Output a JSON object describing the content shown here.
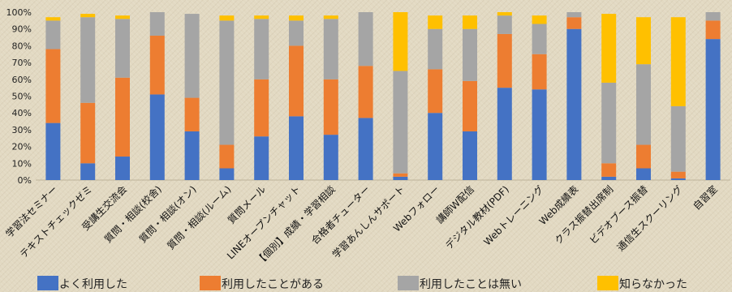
{
  "chart_data": {
    "type": "bar",
    "stacked": true,
    "title": "",
    "xlabel": "",
    "ylabel": "",
    "ylim": [
      0,
      100
    ],
    "y_ticks": [
      "0%",
      "10%",
      "20%",
      "30%",
      "40%",
      "50%",
      "60%",
      "70%",
      "80%",
      "90%",
      "100%"
    ],
    "grid": false,
    "legend_position": "bottom",
    "categories": [
      "学習法セミナー",
      "テキストチェックゼミ",
      "受講生交流会",
      "質問・相談(校舎)",
      "質問・相談(オン)",
      "質問・相談(ルーム)",
      "質問メール",
      "LINEオープンチャット",
      "【個別】成績・学習相談",
      "合格者チューター",
      "学習あんしんサポート",
      "Webフォロー",
      "講師W配信",
      "デジタル教材(PDF)",
      "Webトレーニング",
      "Web成績表",
      "クラス振替出席制",
      "ビデオブース振替",
      "通信生スクーリング",
      "自習室"
    ],
    "series": [
      {
        "name": "よく利用した",
        "color": "#4472c4",
        "values": [
          34,
          10,
          14,
          51,
          29,
          7,
          26,
          38,
          27,
          37,
          2,
          40,
          29,
          55,
          54,
          90,
          2,
          7,
          1,
          84
        ]
      },
      {
        "name": "利用したことがある",
        "color": "#ed7d31",
        "values": [
          44,
          36,
          47,
          35,
          20,
          14,
          34,
          42,
          33,
          31,
          2,
          26,
          30,
          32,
          21,
          7,
          8,
          14,
          4,
          11
        ]
      },
      {
        "name": "利用したことは無い",
        "color": "#a5a5a5",
        "values": [
          17,
          51,
          35,
          14,
          50,
          74,
          36,
          15,
          36,
          32,
          61,
          24,
          31,
          11,
          18,
          3,
          48,
          48,
          39,
          5
        ]
      },
      {
        "name": "知らなかった",
        "color": "#ffc000",
        "values": [
          2,
          2,
          2,
          0,
          0,
          3,
          2,
          3,
          2,
          0,
          35,
          8,
          8,
          2,
          5,
          0,
          41,
          28,
          53,
          0
        ]
      }
    ]
  }
}
